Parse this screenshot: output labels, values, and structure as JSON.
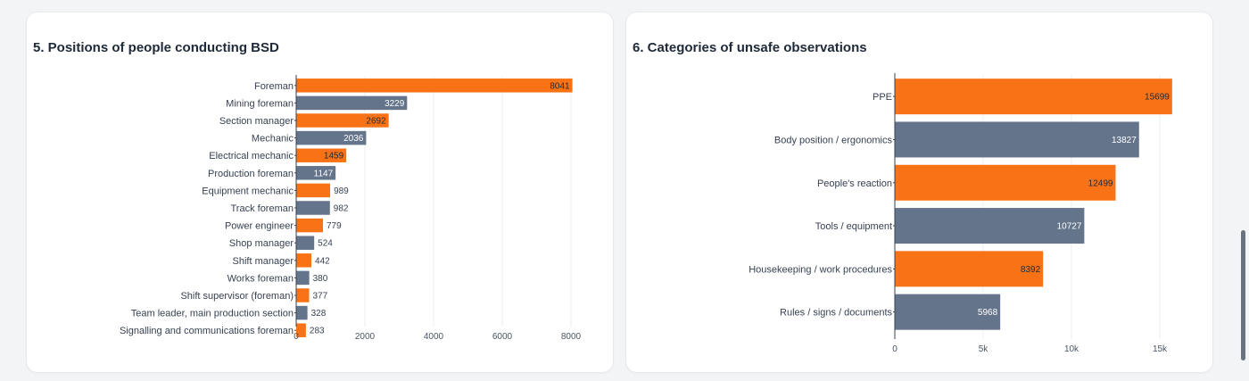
{
  "colors": {
    "orange": "#f97316",
    "slate": "#64748b",
    "grid": "#ececec",
    "axis": "#374151"
  },
  "charts": [
    {
      "title": "5. Positions of people conducting BSD",
      "chart_data": {
        "type": "bar",
        "orientation": "horizontal",
        "categories": [
          "Foreman",
          "Mining foreman",
          "Section manager",
          "Mechanic",
          "Electrical mechanic",
          "Production foreman",
          "Equipment mechanic",
          "Track foreman",
          "Power engineer",
          "Shop manager",
          "Shift manager",
          "Works foreman",
          "Shift supervisor (foreman)",
          "Team leader, main production section",
          "Signalling and communications foreman"
        ],
        "values": [
          8041,
          3229,
          2692,
          2036,
          1459,
          1147,
          989,
          982,
          779,
          524,
          442,
          380,
          377,
          328,
          283
        ],
        "bar_colors": [
          "orange",
          "slate",
          "orange",
          "slate",
          "orange",
          "slate",
          "orange",
          "slate",
          "orange",
          "slate",
          "orange",
          "slate",
          "orange",
          "slate",
          "orange"
        ],
        "xlim": [
          0,
          8000
        ],
        "xticks": [
          0,
          2000,
          4000,
          6000,
          8000
        ],
        "xtick_labels": [
          "0",
          "2000",
          "4000",
          "6000",
          "8000"
        ],
        "grid": true,
        "legend": "none"
      }
    },
    {
      "title": "6. Categories of unsafe observations",
      "chart_data": {
        "type": "bar",
        "orientation": "horizontal",
        "categories": [
          "PPE",
          "Body position / ergonomics",
          "People's reaction",
          "Tools / equipment",
          "Housekeeping / work procedures",
          "Rules / signs / documents"
        ],
        "values": [
          15699,
          13827,
          12499,
          10727,
          8392,
          5968
        ],
        "bar_colors": [
          "orange",
          "slate",
          "orange",
          "slate",
          "orange",
          "slate"
        ],
        "xlim": [
          0,
          15000
        ],
        "xticks": [
          0,
          5000,
          10000,
          15000
        ],
        "xtick_labels": [
          "0",
          "5k",
          "10k",
          "15k"
        ],
        "grid": true,
        "legend": "none"
      }
    }
  ]
}
